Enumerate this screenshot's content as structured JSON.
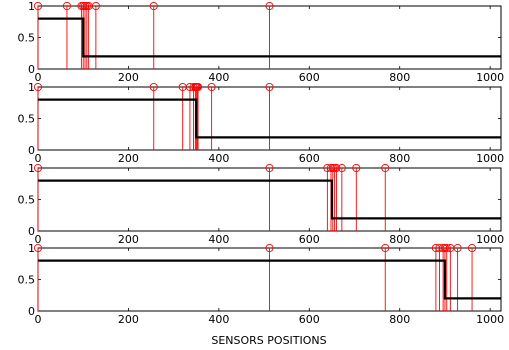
{
  "chart_data": [
    {
      "type": "line",
      "title": "",
      "xlabel": "",
      "ylabel": "",
      "xlim": [
        0,
        1024
      ],
      "ylim": [
        0,
        1
      ],
      "x_ticks": [
        0,
        200,
        400,
        600,
        800,
        1000
      ],
      "y_ticks": [
        0,
        0.5,
        1
      ],
      "grid": false,
      "step": {
        "x": [
          0,
          100,
          100,
          1024
        ],
        "y": [
          0.8,
          0.8,
          0.2,
          0.2
        ]
      },
      "stems": {
        "x": [
          0,
          64,
          96,
          100,
          104,
          108,
          112,
          128,
          256,
          512
        ],
        "y": [
          1,
          1,
          1,
          1,
          1,
          1,
          1,
          1,
          1,
          1
        ]
      }
    },
    {
      "type": "line",
      "title": "",
      "xlabel": "",
      "ylabel": "",
      "xlim": [
        0,
        1024
      ],
      "ylim": [
        0,
        1
      ],
      "x_ticks": [
        0,
        200,
        400,
        600,
        800,
        1000
      ],
      "y_ticks": [
        0,
        0.5,
        1
      ],
      "grid": false,
      "step": {
        "x": [
          0,
          350,
          350,
          1024
        ],
        "y": [
          0.8,
          0.8,
          0.2,
          0.2
        ]
      },
      "stems": {
        "x": [
          0,
          256,
          320,
          336,
          344,
          348,
          350,
          352,
          354,
          384,
          512
        ],
        "y": [
          1,
          1,
          1,
          1,
          1,
          1,
          1,
          1,
          1,
          1,
          1
        ]
      }
    },
    {
      "type": "line",
      "title": "",
      "xlabel": "",
      "ylabel": "",
      "xlim": [
        0,
        1024
      ],
      "ylim": [
        0,
        1
      ],
      "x_ticks": [
        0,
        200,
        400,
        600,
        800,
        1000
      ],
      "y_ticks": [
        0,
        0.5,
        1
      ],
      "grid": false,
      "step": {
        "x": [
          0,
          650,
          650,
          1024
        ],
        "y": [
          0.8,
          0.8,
          0.2,
          0.2
        ]
      },
      "stems": {
        "x": [
          0,
          512,
          640,
          648,
          652,
          656,
          660,
          672,
          704,
          768
        ],
        "y": [
          1,
          1,
          1,
          1,
          1,
          1,
          1,
          1,
          1,
          1
        ]
      }
    },
    {
      "type": "line",
      "title": "",
      "xlabel": "SENSORS POSITIONS",
      "ylabel": "",
      "xlim": [
        0,
        1024
      ],
      "ylim": [
        0,
        1
      ],
      "x_ticks": [
        0,
        200,
        400,
        600,
        800,
        1000
      ],
      "y_ticks": [
        0,
        0.5,
        1
      ],
      "grid": false,
      "step": {
        "x": [
          0,
          900,
          900,
          1024
        ],
        "y": [
          0.8,
          0.8,
          0.2,
          0.2
        ]
      },
      "stems": {
        "x": [
          0,
          512,
          768,
          880,
          888,
          896,
          900,
          904,
          912,
          928,
          960
        ],
        "y": [
          1,
          1,
          1,
          1,
          1,
          1,
          1,
          1,
          1,
          1,
          1
        ]
      }
    }
  ],
  "colors": {
    "step": "#000000",
    "stem": "#ff0000",
    "axes": "#000000"
  }
}
